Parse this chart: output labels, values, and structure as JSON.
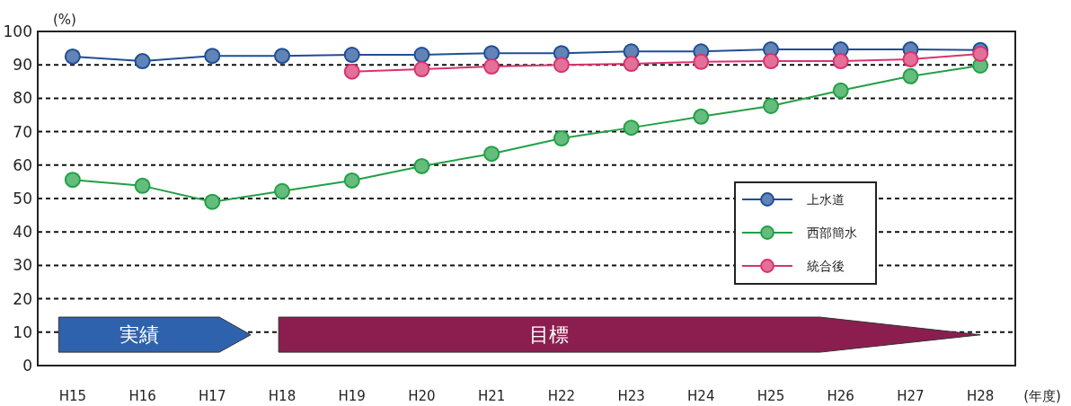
{
  "chart_data": {
    "type": "line",
    "ylabel": "(%)",
    "xlabel": "(年度)",
    "categories": [
      "H15",
      "H16",
      "H17",
      "H18",
      "H19",
      "H20",
      "H21",
      "H22",
      "H23",
      "H24",
      "H25",
      "H26",
      "H27",
      "H28"
    ],
    "series": [
      {
        "name": "上水道",
        "color": "#1f4e96",
        "values": [
          92.5,
          91.1,
          92.7,
          92.7,
          93,
          93,
          93.5,
          93.5,
          94,
          94,
          94.6,
          94.6,
          94.6,
          94.4
        ]
      },
      {
        "name": "西部簡水",
        "color": "#22a045",
        "values": [
          55.6,
          53.8,
          49,
          52.2,
          55.4,
          59.7,
          63.4,
          68,
          71.2,
          74.5,
          77.7,
          82.3,
          86.6,
          89.8
        ]
      },
      {
        "name": "統合後",
        "color": "#d8336e",
        "values": [
          null,
          null,
          null,
          null,
          88,
          88.7,
          89.5,
          90,
          90.3,
          90.9,
          91.1,
          91.1,
          91.7,
          93.3
        ]
      }
    ],
    "ylim": [
      0,
      100
    ],
    "yticks": [
      0,
      10,
      20,
      30,
      40,
      50,
      60,
      70,
      80,
      90,
      100
    ],
    "grid": "y",
    "legend": "right",
    "marker": "circle",
    "line_style": "solid",
    "annotations": [
      "実績",
      "目標"
    ]
  }
}
